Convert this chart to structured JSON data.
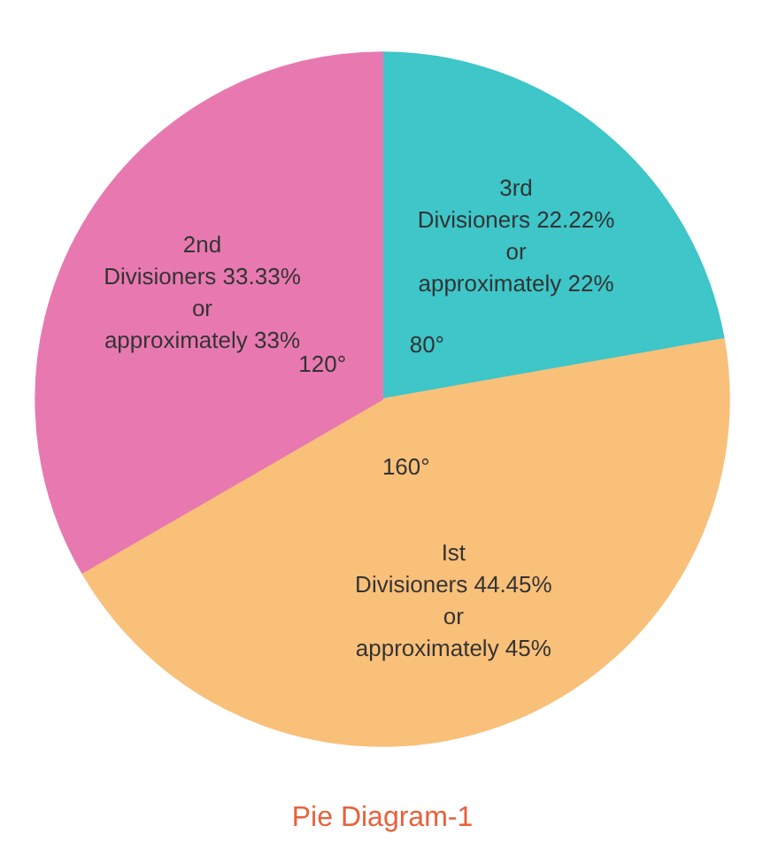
{
  "chart_data": {
    "type": "pie",
    "title": "Pie Diagram-1",
    "categories": [
      "3rd\nDivisioners 22.22%\nor\napproximately 22%",
      "Ist\nDivisioners 44.45%\nor\napproximately 45%",
      "2nd\nDivisioners 33.33%\nor\napproximately 33%"
    ],
    "values": [
      80,
      160,
      120
    ],
    "colors": [
      "#3ec6c9",
      "#f9c07a",
      "#e879b0"
    ],
    "value_labels": [
      "80°",
      "160°",
      "120°"
    ]
  }
}
